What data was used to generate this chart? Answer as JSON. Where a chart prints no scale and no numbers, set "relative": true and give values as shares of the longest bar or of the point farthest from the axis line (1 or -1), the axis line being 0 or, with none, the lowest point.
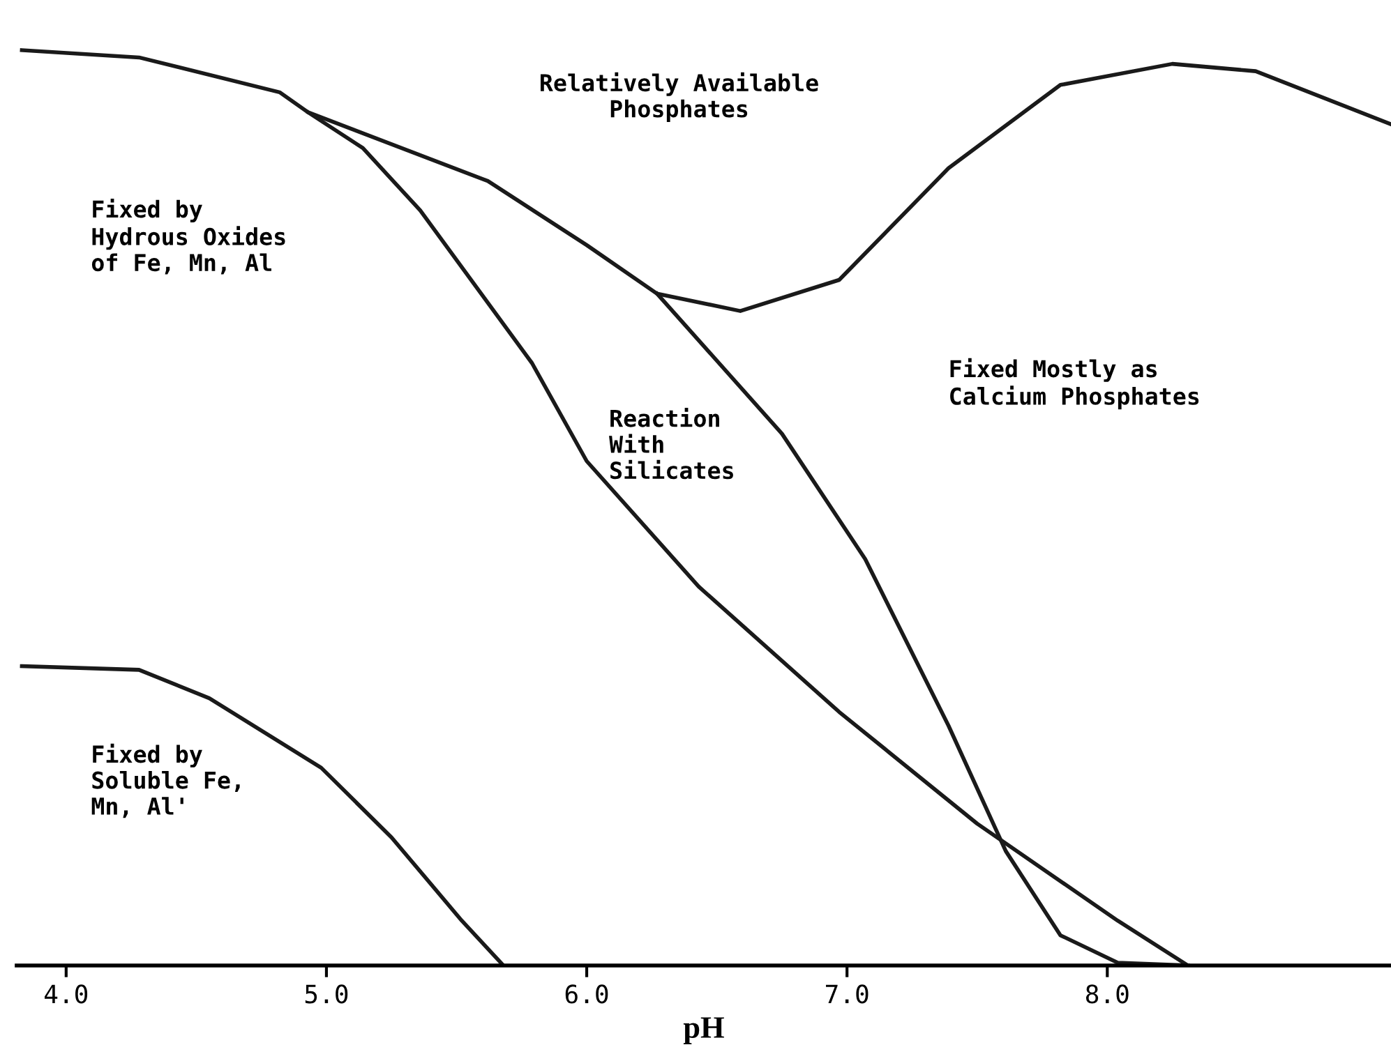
{
  "chart_data": {
    "type": "line",
    "relative": true,
    "xlabel": "pH",
    "xlim": [
      3.81,
      9.09
    ],
    "xticks": [
      {
        "value": 4,
        "label": "4.0"
      },
      {
        "value": 5,
        "label": "5.0"
      },
      {
        "value": 6,
        "label": "6.0"
      },
      {
        "value": 7,
        "label": "7.0"
      },
      {
        "value": 8,
        "label": "8.0"
      }
    ],
    "tick_labels": "x",
    "marker": "none",
    "line_style": "solid",
    "series": [
      {
        "color": "#1a1a1a",
        "x": [
          3.83,
          4.28,
          4.82,
          4.93,
          5.62,
          6.0,
          6.27,
          6.59,
          6.97,
          7.39,
          7.82,
          8.25,
          8.57,
          9.09
        ],
        "values": [
          1.0,
          0.992,
          0.954,
          0.932,
          0.857,
          0.787,
          0.734,
          0.715,
          0.749,
          0.871,
          0.962,
          0.985,
          0.977,
          0.919
        ]
      },
      {
        "color": "#1a1a1a",
        "x": [
          4.93,
          5.14,
          5.36,
          5.79,
          6.0,
          6.43,
          6.97,
          7.5,
          8.04,
          8.31
        ],
        "values": [
          0.932,
          0.893,
          0.825,
          0.658,
          0.551,
          0.414,
          0.277,
          0.155,
          0.049,
          0
        ]
      },
      {
        "color": "#1a1a1a",
        "x": [
          6.27,
          6.75,
          7.07,
          7.39,
          7.61,
          7.82,
          8.04,
          8.31
        ],
        "values": [
          0.734,
          0.581,
          0.444,
          0.262,
          0.125,
          0.033,
          0.003,
          0
        ]
      },
      {
        "color": "#1a1a1a",
        "x": [
          3.83,
          4.28,
          4.55,
          4.98,
          5.25,
          5.52,
          5.68
        ],
        "values": [
          0.327,
          0.323,
          0.292,
          0.216,
          0.14,
          0.049,
          0
        ]
      }
    ],
    "annotations": [
      "Relatively Available\nPhosphates",
      "Fixed by\nHydrous Oxides\nof Fe, Mn, Al",
      "Fixed Mostly as\nCalcium Phosphates",
      "Reaction\nWith\nSilicates",
      "Fixed by\nSoluble Fe,\nMn, Al'"
    ]
  }
}
